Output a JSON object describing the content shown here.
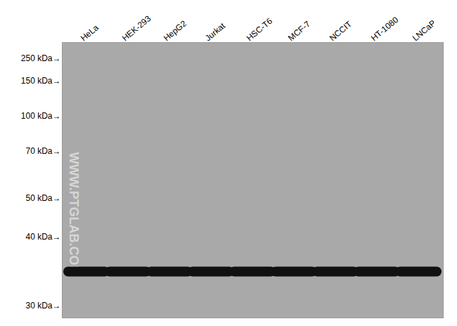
{
  "chart_data": {
    "type": "blot",
    "categories": [
      "HeLa",
      "HEK-293",
      "HepG2",
      "Jurkat",
      "HSC-T6",
      "MCF-7",
      "NCCIT",
      "HT-1080",
      "LNCaP"
    ],
    "values": [
      35,
      35,
      35,
      35,
      35,
      35,
      35,
      35,
      35
    ],
    "color": "#111111",
    "ylim": [
      29,
      300
    ],
    "yticks": [
      {
        "value": 250,
        "label": "250 kDa→"
      },
      {
        "value": 150,
        "label": "150 kDa→"
      },
      {
        "value": 100,
        "label": "100 kDa→"
      },
      {
        "value": 70,
        "label": "70 kDa→"
      },
      {
        "value": 50,
        "label": "50 kDa→"
      },
      {
        "value": 40,
        "label": "40 kDa→"
      },
      {
        "value": 30,
        "label": "30 kDa→"
      }
    ],
    "annotations": [
      "WWW.PTGLAB.COM"
    ]
  }
}
